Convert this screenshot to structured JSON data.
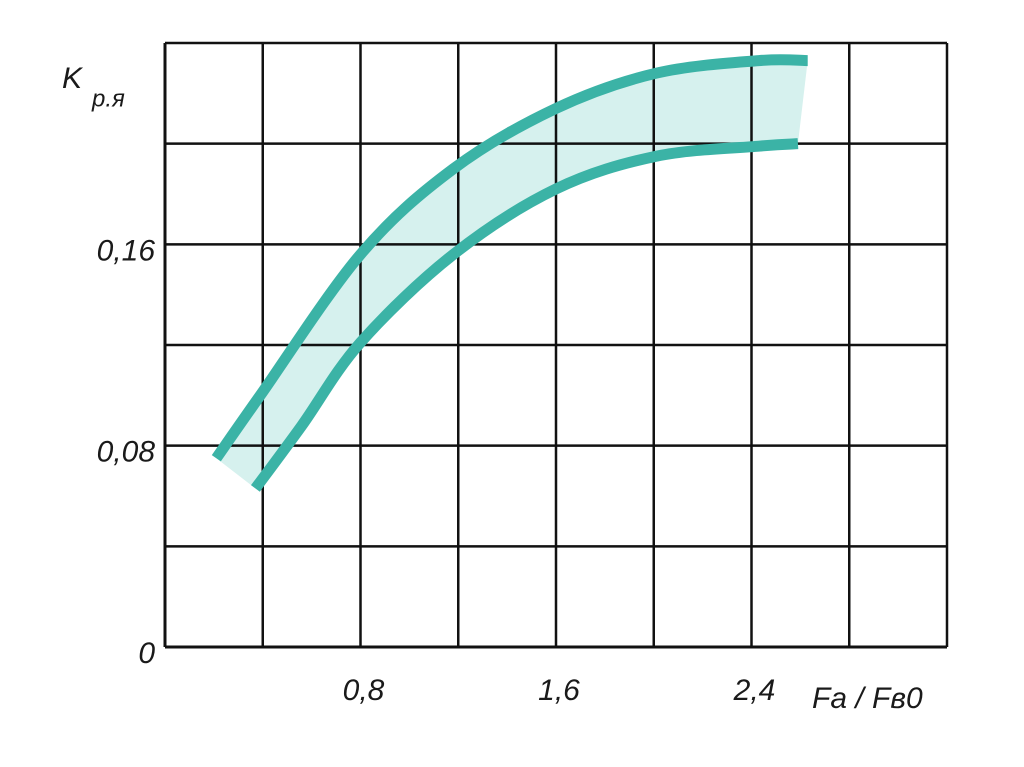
{
  "chart_data": {
    "type": "band",
    "ylabel": "K",
    "ylabel_subscript": "р.я",
    "xlabel": "Fa / Fв0",
    "series": [
      {
        "color": "#3bb3a6",
        "x": [
          0.21,
          0.39,
          0.8,
          1.18,
          1.6,
          2.01,
          2.43,
          2.63
        ],
        "values": [
          0.075,
          0.1,
          0.156,
          0.19,
          0.214,
          0.228,
          0.233,
          0.233
        ]
      },
      {
        "color": "#3bb3a6",
        "x": [
          0.37,
          0.56,
          0.8,
          1.18,
          1.6,
          2.01,
          2.43,
          2.59
        ],
        "values": [
          0.063,
          0.088,
          0.121,
          0.156,
          0.182,
          0.195,
          0.199,
          0.2
        ]
      }
    ],
    "band_color": "#d6f1ee",
    "xlim": [
      0,
      3.2
    ],
    "ylim": [
      0,
      0.24
    ],
    "xticks": [
      {
        "value": 0.8,
        "label": "0,8"
      },
      {
        "value": 1.6,
        "label": "1,6"
      },
      {
        "value": 2.4,
        "label": "2,4"
      }
    ],
    "yticks": [
      0,
      {
        "value": 0.08,
        "label": "0,08"
      },
      {
        "value": 0.16,
        "label": "0,16"
      }
    ],
    "xgrid": [
      0.4,
      0.8,
      1.2,
      1.6,
      2.0,
      2.4,
      2.8,
      3.2
    ],
    "ygrid": [
      0.04,
      0.08,
      0.12,
      0.16,
      0.2,
      0.24
    ],
    "grid": true
  }
}
